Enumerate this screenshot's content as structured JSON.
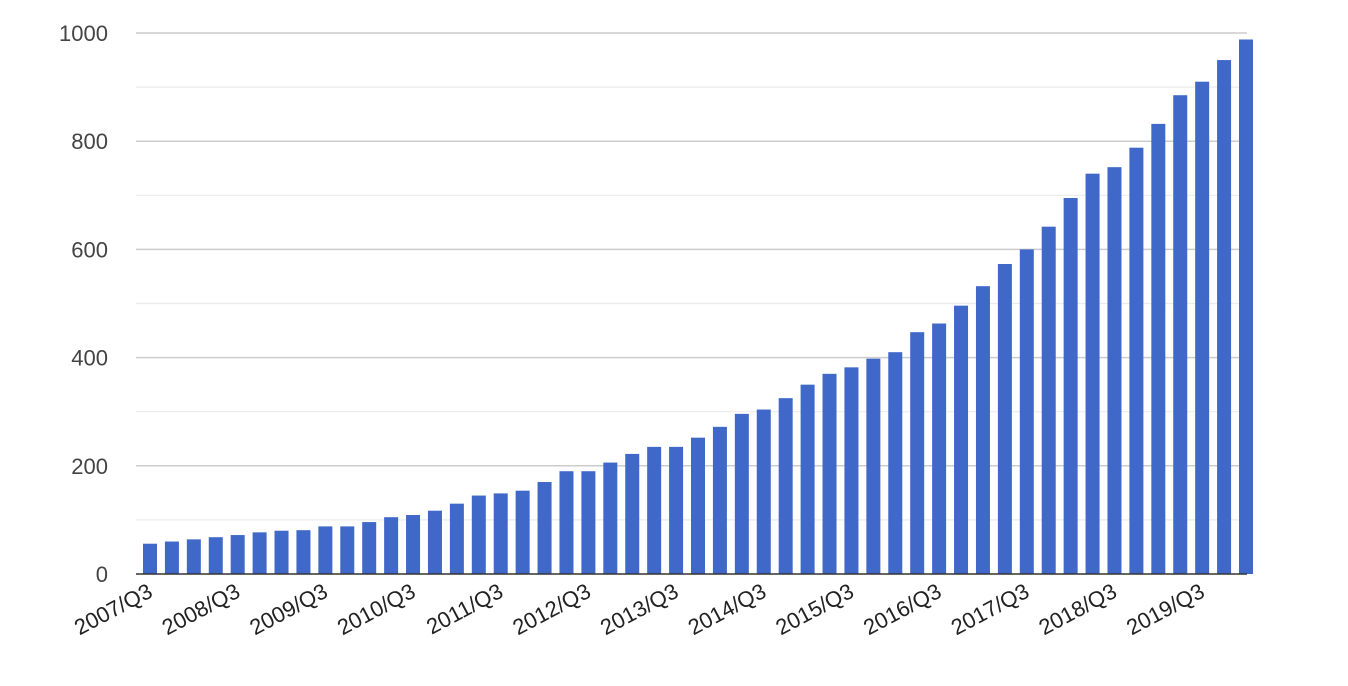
{
  "chart_data": {
    "type": "bar",
    "title": "",
    "xlabel": "",
    "ylabel": "",
    "ylim": [
      0,
      1000
    ],
    "yticks": [
      0,
      200,
      400,
      600,
      800,
      1000
    ],
    "grid": true,
    "legend": "none",
    "bar_color": "#3f68c8",
    "categories": [
      "2007/Q3",
      "2007/Q4",
      "2008/Q1",
      "2008/Q2",
      "2008/Q3",
      "2008/Q4",
      "2009/Q1",
      "2009/Q2",
      "2009/Q3",
      "2009/Q4",
      "2010/Q1",
      "2010/Q2",
      "2010/Q3",
      "2010/Q4",
      "2011/Q1",
      "2011/Q2",
      "2011/Q3",
      "2011/Q4",
      "2012/Q1",
      "2012/Q2",
      "2012/Q3",
      "2012/Q4",
      "2013/Q1",
      "2013/Q2",
      "2013/Q3",
      "2013/Q4",
      "2014/Q1",
      "2014/Q2",
      "2014/Q3",
      "2014/Q4",
      "2015/Q1",
      "2015/Q2",
      "2015/Q3",
      "2015/Q4",
      "2016/Q1",
      "2016/Q2",
      "2016/Q3",
      "2016/Q4",
      "2017/Q1",
      "2017/Q2",
      "2017/Q3",
      "2017/Q4",
      "2018/Q1",
      "2018/Q2",
      "2018/Q3",
      "2018/Q4",
      "2019/Q1",
      "2019/Q2",
      "2019/Q3",
      "2019/Q4",
      "2020/Q1"
    ],
    "values": [
      56,
      60,
      64,
      68,
      72,
      77,
      80,
      81,
      88,
      88,
      96,
      105,
      109,
      117,
      130,
      145,
      149,
      154,
      170,
      190,
      190,
      206,
      222,
      235,
      235,
      252,
      272,
      296,
      304,
      325,
      350,
      370,
      382,
      398,
      410,
      447,
      463,
      496,
      532,
      573,
      600,
      642,
      695,
      740,
      752,
      788,
      832,
      885,
      910,
      950,
      988
    ],
    "xtick_labels": [
      "2007/Q3",
      "2008/Q3",
      "2009/Q3",
      "2010/Q3",
      "2011/Q3",
      "2012/Q3",
      "2013/Q3",
      "2014/Q3",
      "2015/Q3",
      "2016/Q3",
      "2017/Q3",
      "2018/Q3",
      "2019/Q3"
    ]
  }
}
